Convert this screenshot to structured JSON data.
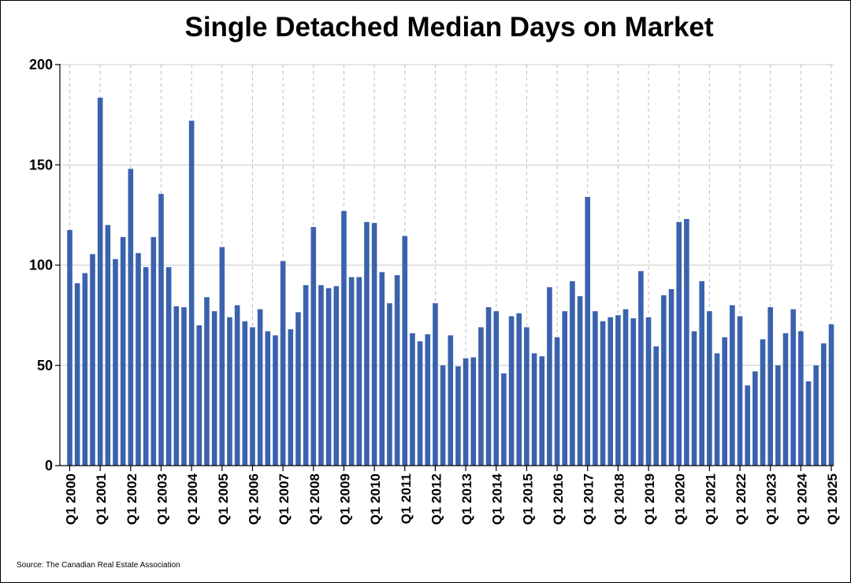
{
  "chart_data": {
    "type": "bar",
    "title": "Single Detached Median Days on Market",
    "xlabel": "",
    "ylabel": "",
    "ylim": [
      0,
      200
    ],
    "yticks": [
      0,
      50,
      100,
      150,
      200
    ],
    "grid": true,
    "bar_color": "#3a62ad",
    "source": "Source: The Canadian Real Estate Association",
    "xtick_labels": [
      "Q1 2000",
      "Q1 2001",
      "Q1 2002",
      "Q1 2003",
      "Q1 2004",
      "Q1 2005",
      "Q1 2006",
      "Q1 2007",
      "Q1 2008",
      "Q1 2009",
      "Q1 2010",
      "Q1 2011",
      "Q1 2012",
      "Q1 2013",
      "Q1 2014",
      "Q1 2015",
      "Q1 2016",
      "Q1 2017",
      "Q1 2018",
      "Q1 2019",
      "Q1 2020",
      "Q1 2021",
      "Q1 2022",
      "Q1 2023",
      "Q1 2024",
      "Q1 2025"
    ],
    "categories": [
      "Q1 2000",
      "Q2 2000",
      "Q3 2000",
      "Q4 2000",
      "Q1 2001",
      "Q2 2001",
      "Q3 2001",
      "Q4 2001",
      "Q1 2002",
      "Q2 2002",
      "Q3 2002",
      "Q4 2002",
      "Q1 2003",
      "Q2 2003",
      "Q3 2003",
      "Q4 2003",
      "Q1 2004",
      "Q2 2004",
      "Q3 2004",
      "Q4 2004",
      "Q1 2005",
      "Q2 2005",
      "Q3 2005",
      "Q4 2005",
      "Q1 2006",
      "Q2 2006",
      "Q3 2006",
      "Q4 2006",
      "Q1 2007",
      "Q2 2007",
      "Q3 2007",
      "Q4 2007",
      "Q1 2008",
      "Q2 2008",
      "Q3 2008",
      "Q4 2008",
      "Q1 2009",
      "Q2 2009",
      "Q3 2009",
      "Q4 2009",
      "Q1 2010",
      "Q2 2010",
      "Q3 2010",
      "Q4 2010",
      "Q1 2011",
      "Q2 2011",
      "Q3 2011",
      "Q4 2011",
      "Q1 2012",
      "Q2 2012",
      "Q3 2012",
      "Q4 2012",
      "Q1 2013",
      "Q2 2013",
      "Q3 2013",
      "Q4 2013",
      "Q1 2014",
      "Q2 2014",
      "Q3 2014",
      "Q4 2014",
      "Q1 2015",
      "Q2 2015",
      "Q3 2015",
      "Q4 2015",
      "Q1 2016",
      "Q2 2016",
      "Q3 2016",
      "Q4 2016",
      "Q1 2017",
      "Q2 2017",
      "Q3 2017",
      "Q4 2017",
      "Q1 2018",
      "Q2 2018",
      "Q3 2018",
      "Q4 2018",
      "Q1 2019",
      "Q2 2019",
      "Q3 2019",
      "Q4 2019",
      "Q1 2020",
      "Q2 2020",
      "Q3 2020",
      "Q4 2020",
      "Q1 2021",
      "Q2 2021",
      "Q3 2021",
      "Q4 2021",
      "Q1 2022",
      "Q2 2022",
      "Q3 2022",
      "Q4 2022",
      "Q1 2023",
      "Q2 2023",
      "Q3 2023",
      "Q4 2023",
      "Q1 2024",
      "Q2 2024",
      "Q3 2024",
      "Q4 2024",
      "Q1 2025"
    ],
    "values": [
      117.5,
      91,
      96,
      105.5,
      183.5,
      120,
      103,
      114,
      148,
      106,
      99,
      114,
      135.5,
      99,
      79.5,
      79,
      172,
      70,
      84,
      77,
      109,
      74,
      80,
      72,
      69,
      78,
      67,
      65,
      102,
      68,
      76.5,
      90,
      119,
      90,
      88.5,
      89.5,
      127,
      94,
      94,
      121.5,
      121,
      96.5,
      81,
      95,
      114.5,
      66,
      62,
      65.5,
      81,
      50,
      65,
      49.5,
      53.5,
      54,
      69,
      79,
      77,
      46,
      74.5,
      76,
      69,
      56,
      54.5,
      89,
      64,
      77,
      92,
      84.5,
      134,
      77,
      72,
      74,
      75,
      78,
      73.5,
      97,
      74,
      59.5,
      85,
      88,
      121.5,
      123,
      67,
      92,
      77,
      56,
      64,
      80,
      74.5,
      40,
      47,
      63,
      79,
      50,
      66,
      78,
      67,
      42,
      50,
      61,
      70.5
    ]
  }
}
